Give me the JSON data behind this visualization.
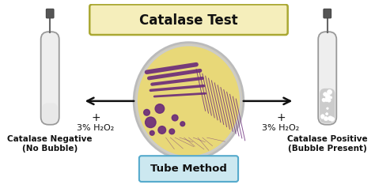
{
  "title": "Catalase Test",
  "subtitle": "Tube Method",
  "left_label1": "Catalase Negative",
  "left_label2": "(No Bubble)",
  "right_label1": "Catalase Positive",
  "right_label2": "(Bubble Present)",
  "h2o2_label": "3% H₂O₂",
  "plus_sign": "+",
  "bg_color": "#ffffff",
  "title_box_color": "#f5eebb",
  "subtitle_box_color": "#cce8f0",
  "tube_body_color": "#eeeeee",
  "tube_outline_color": "#999999",
  "tube_liquid_neg": "#e8e8e8",
  "tube_liquid_pos": "#cccccc",
  "petri_bg": "#e8d878",
  "petri_rim": "#c8c8c8",
  "colony_color": "#6a2a7a",
  "arrow_color": "#111111",
  "label_color": "#111111",
  "swab_gray": "#666666",
  "swab_tip": "#555555"
}
